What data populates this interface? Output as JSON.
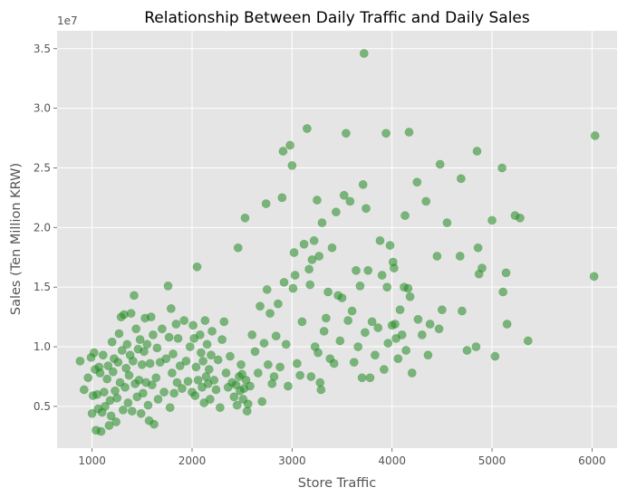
{
  "chart_data": {
    "type": "scatter",
    "title": "Relationship Between Daily Traffic and Daily Sales",
    "xlabel": "Store Traffic",
    "ylabel": "Sales (Ten Million KRW)",
    "y_offset_text": "1e7",
    "xlim": [
      650,
      6250
    ],
    "ylim": [
      1500000,
      36500000
    ],
    "x_ticks": [
      1000,
      2000,
      3000,
      4000,
      5000,
      6000
    ],
    "x_tick_labels": [
      "1000",
      "2000",
      "3000",
      "4000",
      "5000",
      "6000"
    ],
    "y_ticks": [
      5000000,
      10000000,
      15000000,
      20000000,
      25000000,
      30000000,
      35000000
    ],
    "y_tick_labels": [
      "0.5",
      "1.0",
      "1.5",
      "2.0",
      "2.5",
      "3.0",
      "3.5"
    ],
    "grid": true,
    "background": "#e5e5e5",
    "point_color": "#228b22",
    "series": [
      {
        "points": [
          [
            880,
            8800000
          ],
          [
            920,
            6400000
          ],
          [
            960,
            7400000
          ],
          [
            990,
            9100000
          ],
          [
            1000,
            4400000
          ],
          [
            1010,
            5900000
          ],
          [
            1020,
            9500000
          ],
          [
            1030,
            8100000
          ],
          [
            1040,
            3000000
          ],
          [
            1050,
            6000000
          ],
          [
            1060,
            4800000
          ],
          [
            1070,
            8300000
          ],
          [
            1080,
            7800000
          ],
          [
            1090,
            2900000
          ],
          [
            1100,
            4500000
          ],
          [
            1110,
            9300000
          ],
          [
            1120,
            6200000
          ],
          [
            1130,
            5000000
          ],
          [
            1150,
            7300000
          ],
          [
            1160,
            8400000
          ],
          [
            1170,
            3400000
          ],
          [
            1180,
            5500000
          ],
          [
            1190,
            4200000
          ],
          [
            1200,
            10400000
          ],
          [
            1210,
            7900000
          ],
          [
            1220,
            9000000
          ],
          [
            1230,
            6300000
          ],
          [
            1240,
            3700000
          ],
          [
            1250,
            5700000
          ],
          [
            1260,
            8700000
          ],
          [
            1270,
            11100000
          ],
          [
            1280,
            7000000
          ],
          [
            1290,
            12500000
          ],
          [
            1300,
            9700000
          ],
          [
            1310,
            4700000
          ],
          [
            1320,
            12700000
          ],
          [
            1330,
            6600000
          ],
          [
            1340,
            8200000
          ],
          [
            1350,
            10200000
          ],
          [
            1360,
            5300000
          ],
          [
            1370,
            7600000
          ],
          [
            1380,
            9300000
          ],
          [
            1390,
            12800000
          ],
          [
            1400,
            4600000
          ],
          [
            1410,
            8800000
          ],
          [
            1420,
            14300000
          ],
          [
            1430,
            6900000
          ],
          [
            1440,
            11500000
          ],
          [
            1450,
            5800000
          ],
          [
            1460,
            9800000
          ],
          [
            1470,
            7200000
          ],
          [
            1480,
            10600000
          ],
          [
            1490,
            4400000
          ],
          [
            1500,
            8500000
          ],
          [
            1510,
            6100000
          ],
          [
            1520,
            9600000
          ],
          [
            1530,
            12400000
          ],
          [
            1540,
            7000000
          ],
          [
            1550,
            10200000
          ],
          [
            1560,
            5100000
          ],
          [
            1570,
            3800000
          ],
          [
            1580,
            8600000
          ],
          [
            1590,
            12500000
          ],
          [
            1600,
            6800000
          ],
          [
            1610,
            11000000
          ],
          [
            1620,
            3500000
          ],
          [
            1640,
            7400000
          ],
          [
            1650,
            9900000
          ],
          [
            1660,
            5600000
          ],
          [
            1680,
            8700000
          ],
          [
            1700,
            11500000
          ],
          [
            1720,
            6200000
          ],
          [
            1740,
            9000000
          ],
          [
            1760,
            15100000
          ],
          [
            1770,
            10800000
          ],
          [
            1780,
            4900000
          ],
          [
            1790,
            13200000
          ],
          [
            1800,
            7800000
          ],
          [
            1810,
            9400000
          ],
          [
            1820,
            6100000
          ],
          [
            1840,
            11900000
          ],
          [
            1850,
            7000000
          ],
          [
            1860,
            10700000
          ],
          [
            1880,
            8400000
          ],
          [
            1900,
            6500000
          ],
          [
            1920,
            12200000
          ],
          [
            1940,
            8800000
          ],
          [
            1960,
            7100000
          ],
          [
            1980,
            10000000
          ],
          [
            2000,
            6200000
          ],
          [
            2010,
            11800000
          ],
          [
            2020,
            10700000
          ],
          [
            2030,
            5900000
          ],
          [
            2040,
            8300000
          ],
          [
            2050,
            16700000
          ],
          [
            2060,
            7200000
          ],
          [
            2080,
            11000000
          ],
          [
            2090,
            9500000
          ],
          [
            2100,
            6600000
          ],
          [
            2110,
            8800000
          ],
          [
            2120,
            5300000
          ],
          [
            2130,
            12200000
          ],
          [
            2140,
            7500000
          ],
          [
            2150,
            10200000
          ],
          [
            2160,
            6900000
          ],
          [
            2170,
            8100000
          ],
          [
            2180,
            5600000
          ],
          [
            2190,
            9300000
          ],
          [
            2200,
            11300000
          ],
          [
            2220,
            7200000
          ],
          [
            2240,
            6400000
          ],
          [
            2260,
            8900000
          ],
          [
            2280,
            4900000
          ],
          [
            2300,
            10600000
          ],
          [
            2320,
            12100000
          ],
          [
            2340,
            7800000
          ],
          [
            2360,
            6600000
          ],
          [
            2380,
            9200000
          ],
          [
            2400,
            7000000
          ],
          [
            2420,
            5800000
          ],
          [
            2440,
            6800000
          ],
          [
            2450,
            5100000
          ],
          [
            2460,
            18300000
          ],
          [
            2470,
            7500000
          ],
          [
            2480,
            6300000
          ],
          [
            2490,
            8500000
          ],
          [
            2500,
            7700000
          ],
          [
            2510,
            5600000
          ],
          [
            2520,
            6500000
          ],
          [
            2530,
            20800000
          ],
          [
            2540,
            7200000
          ],
          [
            2550,
            4600000
          ],
          [
            2560,
            5200000
          ],
          [
            2580,
            6700000
          ],
          [
            2600,
            11000000
          ],
          [
            2630,
            9600000
          ],
          [
            2660,
            7800000
          ],
          [
            2680,
            13400000
          ],
          [
            2700,
            5400000
          ],
          [
            2720,
            10300000
          ],
          [
            2740,
            22000000
          ],
          [
            2750,
            14800000
          ],
          [
            2760,
            8500000
          ],
          [
            2780,
            12800000
          ],
          [
            2800,
            6900000
          ],
          [
            2820,
            7500000
          ],
          [
            2840,
            10900000
          ],
          [
            2860,
            13600000
          ],
          [
            2880,
            8300000
          ],
          [
            2900,
            22500000
          ],
          [
            2910,
            26400000
          ],
          [
            2920,
            15400000
          ],
          [
            2940,
            10200000
          ],
          [
            2960,
            6700000
          ],
          [
            2980,
            26900000
          ],
          [
            3000,
            25200000
          ],
          [
            3010,
            14900000
          ],
          [
            3020,
            17900000
          ],
          [
            3030,
            16000000
          ],
          [
            3050,
            8600000
          ],
          [
            3080,
            7600000
          ],
          [
            3100,
            12100000
          ],
          [
            3120,
            18600000
          ],
          [
            3150,
            28300000
          ],
          [
            3170,
            16500000
          ],
          [
            3180,
            15200000
          ],
          [
            3190,
            7500000
          ],
          [
            3200,
            17300000
          ],
          [
            3220,
            18900000
          ],
          [
            3230,
            10000000
          ],
          [
            3250,
            22300000
          ],
          [
            3260,
            9500000
          ],
          [
            3270,
            17600000
          ],
          [
            3280,
            7000000
          ],
          [
            3290,
            6400000
          ],
          [
            3300,
            20400000
          ],
          [
            3320,
            11300000
          ],
          [
            3340,
            12400000
          ],
          [
            3360,
            14600000
          ],
          [
            3380,
            9000000
          ],
          [
            3400,
            18300000
          ],
          [
            3420,
            8600000
          ],
          [
            3440,
            21300000
          ],
          [
            3460,
            14300000
          ],
          [
            3480,
            10500000
          ],
          [
            3500,
            14100000
          ],
          [
            3520,
            22700000
          ],
          [
            3540,
            27900000
          ],
          [
            3560,
            12200000
          ],
          [
            3580,
            22200000
          ],
          [
            3600,
            13000000
          ],
          [
            3620,
            8700000
          ],
          [
            3640,
            16400000
          ],
          [
            3660,
            10000000
          ],
          [
            3680,
            15100000
          ],
          [
            3700,
            7400000
          ],
          [
            3710,
            23600000
          ],
          [
            3720,
            34600000
          ],
          [
            3730,
            11200000
          ],
          [
            3740,
            21600000
          ],
          [
            3760,
            16400000
          ],
          [
            3780,
            7400000
          ],
          [
            3800,
            12100000
          ],
          [
            3830,
            9300000
          ],
          [
            3860,
            11600000
          ],
          [
            3880,
            18900000
          ],
          [
            3900,
            16000000
          ],
          [
            3920,
            8100000
          ],
          [
            3940,
            27900000
          ],
          [
            3950,
            15000000
          ],
          [
            3960,
            10300000
          ],
          [
            3980,
            18500000
          ],
          [
            4000,
            11800000
          ],
          [
            4010,
            17100000
          ],
          [
            4020,
            16600000
          ],
          [
            4030,
            11900000
          ],
          [
            4040,
            10700000
          ],
          [
            4060,
            9000000
          ],
          [
            4080,
            13100000
          ],
          [
            4100,
            11000000
          ],
          [
            4120,
            15000000
          ],
          [
            4130,
            21000000
          ],
          [
            4140,
            9700000
          ],
          [
            4160,
            14900000
          ],
          [
            4170,
            28000000
          ],
          [
            4180,
            14200000
          ],
          [
            4200,
            7800000
          ],
          [
            4250,
            23800000
          ],
          [
            4260,
            12300000
          ],
          [
            4300,
            11000000
          ],
          [
            4340,
            22200000
          ],
          [
            4360,
            9300000
          ],
          [
            4380,
            11900000
          ],
          [
            4450,
            17600000
          ],
          [
            4470,
            11500000
          ],
          [
            4480,
            25300000
          ],
          [
            4500,
            13100000
          ],
          [
            4550,
            20400000
          ],
          [
            4680,
            17600000
          ],
          [
            4690,
            24100000
          ],
          [
            4700,
            13000000
          ],
          [
            4750,
            9700000
          ],
          [
            4840,
            10000000
          ],
          [
            4850,
            26400000
          ],
          [
            4860,
            18300000
          ],
          [
            4870,
            16100000
          ],
          [
            4900,
            16600000
          ],
          [
            5000,
            20600000
          ],
          [
            5030,
            9200000
          ],
          [
            5100,
            25000000
          ],
          [
            5110,
            14600000
          ],
          [
            5140,
            16200000
          ],
          [
            5150,
            11900000
          ],
          [
            5230,
            21000000
          ],
          [
            5280,
            20800000
          ],
          [
            5360,
            10500000
          ],
          [
            6020,
            15900000
          ],
          [
            6030,
            27700000
          ]
        ]
      }
    ]
  }
}
